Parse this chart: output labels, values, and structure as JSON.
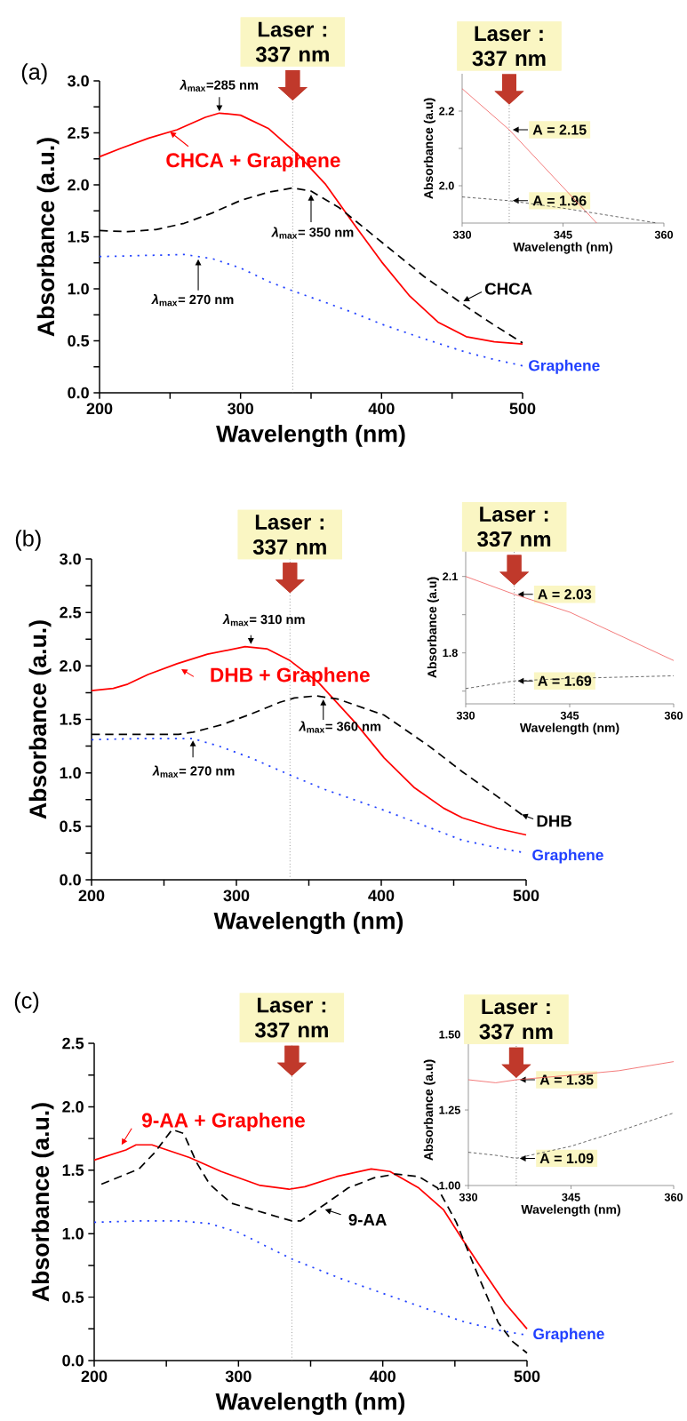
{
  "chart_data": [
    {
      "type": "line",
      "title": "(a)",
      "xlabel": "Wavelength (nm)",
      "ylabel": "Absorbance (a.u.)",
      "xlim": [
        200,
        500
      ],
      "ylim": [
        0,
        3
      ],
      "xticks": [
        200,
        {
          "value": 250,
          "label": null
        },
        300,
        {
          "value": 350,
          "label": null
        },
        400,
        {
          "value": 450,
          "label": null
        },
        500
      ],
      "yticks": [
        {
          "value": 0,
          "label": "0.0"
        },
        {
          "value": 0.25,
          "label": null
        },
        {
          "value": 0.5,
          "label": "0.5"
        },
        {
          "value": 0.75,
          "label": null
        },
        {
          "value": 1,
          "label": "1.0"
        },
        {
          "value": 1.25,
          "label": null
        },
        {
          "value": 1.5,
          "label": "1.5"
        },
        {
          "value": 1.75,
          "label": null
        },
        {
          "value": 2,
          "label": "2.0"
        },
        {
          "value": 2.25,
          "label": null
        },
        {
          "value": 2.5,
          "label": "2.5"
        },
        {
          "value": 2.75,
          "label": null
        },
        {
          "value": 3,
          "label": "3.0"
        }
      ],
      "series": [
        {
          "name": "CHCA + Graphene",
          "color": "#ff0000",
          "line_style": "solid",
          "x": [
            200,
            215,
            235,
            255,
            275,
            285,
            300,
            320,
            340,
            360,
            380,
            400,
            420,
            440,
            460,
            480,
            500
          ],
          "values": [
            2.27,
            2.35,
            2.45,
            2.53,
            2.65,
            2.69,
            2.67,
            2.54,
            2.3,
            2.01,
            1.63,
            1.26,
            0.93,
            0.68,
            0.54,
            0.49,
            0.47
          ]
        },
        {
          "name": "CHCA",
          "color": "#000000",
          "line_style": "dashed",
          "x": [
            200,
            220,
            240,
            260,
            280,
            300,
            320,
            337,
            350,
            370,
            400,
            430,
            460,
            480,
            500
          ],
          "values": [
            1.56,
            1.55,
            1.57,
            1.63,
            1.73,
            1.85,
            1.93,
            1.97,
            1.94,
            1.78,
            1.45,
            1.12,
            0.83,
            0.65,
            0.48
          ]
        },
        {
          "name": "Graphene",
          "color": "#2040ff",
          "line_style": "dotted",
          "x": [
            200,
            230,
            260,
            280,
            300,
            320,
            337,
            360,
            380,
            400,
            430,
            460,
            480,
            500
          ],
          "values": [
            1.31,
            1.32,
            1.33,
            1.29,
            1.2,
            1.07,
            0.98,
            0.87,
            0.77,
            0.66,
            0.52,
            0.39,
            0.32,
            0.26
          ]
        }
      ],
      "ref_lines": [
        {
          "axis": "x",
          "value": 337,
          "label": "Laser : 337 nm",
          "color": "#666666",
          "line_style": "dotted"
        }
      ],
      "annotations": [
        {
          "text": "*λ*$_{max}$=285 nm",
          "x": 285,
          "y": 2.69
        },
        {
          "text": "*λ*$_{max}$= 350 nm",
          "x": 350,
          "y": 1.94
        },
        {
          "text": "*λ*$_{max}$= 270 nm",
          "x": 270,
          "y": 1.31
        }
      ]
    },
    {
      "type": "line",
      "xlabel": "Wavelength (nm)",
      "ylabel": "Absorbance (a.u)",
      "xlim": [
        330,
        360
      ],
      "ylim": [
        1.9,
        2.3
      ],
      "xticks": [
        330,
        345,
        360
      ],
      "yticks": [
        {
          "value": 2,
          "label": "2.0"
        },
        {
          "value": 2.1,
          "label": null
        },
        {
          "value": 2.2,
          "label": "2.2"
        }
      ],
      "series": [
        {
          "color": "#f05a5a",
          "line_style": "solid",
          "x": [
            330,
            337,
            350
          ],
          "values": [
            2.26,
            2.15,
            1.9
          ]
        },
        {
          "color": "#444444",
          "line_style": "dashed",
          "x": [
            330,
            337,
            345,
            352,
            359
          ],
          "values": [
            1.97,
            1.96,
            1.94,
            1.92,
            1.9
          ]
        }
      ],
      "ref_lines": [
        {
          "axis": "x",
          "value": 337,
          "label": "Laser : 337 nm",
          "color": "#444444",
          "line_style": "dotted"
        }
      ],
      "annotations": [
        {
          "text": "A = 2.15",
          "x": 337,
          "y": 2.15
        },
        {
          "text": "A = 1.96",
          "x": 337,
          "y": 1.96
        }
      ]
    },
    {
      "type": "line",
      "title": "(b)",
      "xlabel": "Wavelength (nm)",
      "ylabel": "Absorbance (a.u.)",
      "xlim": [
        200,
        500
      ],
      "ylim": [
        0,
        3
      ],
      "xticks": [
        200,
        {
          "value": 250,
          "label": null
        },
        300,
        {
          "value": 350,
          "label": null
        },
        400,
        {
          "value": 450,
          "label": null
        },
        500
      ],
      "yticks": [
        {
          "value": 0,
          "label": "0.0"
        },
        {
          "value": 0.25,
          "label": null
        },
        {
          "value": 0.5,
          "label": "0.5"
        },
        {
          "value": 0.75,
          "label": null
        },
        {
          "value": 1,
          "label": "1.0"
        },
        {
          "value": 1.25,
          "label": null
        },
        {
          "value": 1.5,
          "label": "1.5"
        },
        {
          "value": 1.75,
          "label": null
        },
        {
          "value": 2,
          "label": "2.0"
        },
        {
          "value": 2.25,
          "label": null
        },
        {
          "value": 2.5,
          "label": "2.5"
        },
        {
          "value": 2.75,
          "label": null
        },
        {
          "value": 3,
          "label": "3.0"
        }
      ],
      "series": [
        {
          "name": "DHB + Graphene",
          "color": "#ff0000",
          "line_style": "solid",
          "x": [
            200,
            215,
            225,
            239,
            259,
            280,
            306,
            321,
            337,
            357,
            382,
            402,
            423,
            443,
            456,
            480,
            500
          ],
          "values": [
            1.77,
            1.79,
            1.83,
            1.92,
            2.02,
            2.11,
            2.18,
            2.16,
            2.05,
            1.84,
            1.47,
            1.14,
            0.86,
            0.67,
            0.58,
            0.48,
            0.42
          ]
        },
        {
          "name": "DHB",
          "color": "#000000",
          "line_style": "dashed",
          "x": [
            200,
            220,
            260,
            270,
            290,
            310,
            330,
            340,
            355,
            370,
            402,
            433,
            456,
            480,
            500
          ],
          "values": [
            1.36,
            1.36,
            1.36,
            1.38,
            1.45,
            1.55,
            1.66,
            1.7,
            1.72,
            1.69,
            1.54,
            1.25,
            1.01,
            0.78,
            0.58
          ]
        },
        {
          "name": "Graphene",
          "color": "#2040ff",
          "line_style": "dotted",
          "x": [
            200,
            230,
            270,
            288,
            310,
            337,
            360,
            402,
            456,
            480,
            500
          ],
          "values": [
            1.31,
            1.32,
            1.32,
            1.25,
            1.14,
            0.98,
            0.85,
            0.65,
            0.37,
            0.3,
            0.25
          ]
        }
      ],
      "ref_lines": [
        {
          "axis": "x",
          "value": 337,
          "label": "Laser : 337 nm",
          "color": "#666666",
          "line_style": "dotted"
        }
      ],
      "annotations": [
        {
          "text": "*λ*$_{max}$= 310 nm",
          "x": 310,
          "y": 2.18
        },
        {
          "text": "*λ*$_{max}$= 360 nm",
          "x": 360,
          "y": 1.72
        },
        {
          "text": "*λ*$_{max}$= 270 nm",
          "x": 270,
          "y": 1.32
        }
      ]
    },
    {
      "type": "line",
      "xlabel": "Wavelength (nm)",
      "ylabel": "Absorbance (a.u)",
      "xlim": [
        330,
        360
      ],
      "ylim": [
        1.6,
        2.2
      ],
      "xticks": [
        330,
        345,
        360
      ],
      "yticks": [
        {
          "value": 1.65,
          "label": null
        },
        1.8,
        {
          "value": 1.95,
          "label": null
        },
        2.1
      ],
      "series": [
        {
          "color": "#f05a5a",
          "line_style": "solid",
          "x": [
            330,
            337,
            345,
            360
          ],
          "values": [
            2.1,
            2.03,
            1.96,
            1.77
          ]
        },
        {
          "color": "#444444",
          "line_style": "dashed",
          "x": [
            330,
            337,
            345,
            360
          ],
          "values": [
            1.66,
            1.69,
            1.7,
            1.71
          ]
        }
      ],
      "ref_lines": [
        {
          "axis": "x",
          "value": 337,
          "label": "Laser : 337 nm",
          "color": "#444444",
          "line_style": "dotted"
        }
      ],
      "annotations": [
        {
          "text": "A = 2.03",
          "x": 337,
          "y": 2.03
        },
        {
          "text": "A = 1.69",
          "x": 337,
          "y": 1.69
        }
      ]
    },
    {
      "type": "line",
      "title": "(c)",
      "xlabel": "Wavelength (nm)",
      "ylabel": "Absorbance (a.u.)",
      "xlim": [
        200,
        500
      ],
      "ylim": [
        0,
        2.5
      ],
      "xticks": [
        200,
        {
          "value": 250,
          "label": null
        },
        300,
        {
          "value": 350,
          "label": null
        },
        400,
        {
          "value": 450,
          "label": null
        },
        500
      ],
      "yticks": [
        {
          "value": 0,
          "label": "0.0"
        },
        {
          "value": 0.25,
          "label": null
        },
        {
          "value": 0.5,
          "label": "0.5"
        },
        {
          "value": 0.75,
          "label": null
        },
        {
          "value": 1,
          "label": "1.0"
        },
        {
          "value": 1.25,
          "label": null
        },
        {
          "value": 1.5,
          "label": "1.5"
        },
        {
          "value": 1.75,
          "label": null
        },
        {
          "value": 2,
          "label": "2.0"
        },
        {
          "value": 2.25,
          "label": null
        },
        {
          "value": 2.5,
          "label": "2.5"
        }
      ],
      "series": [
        {
          "name": "9-AA + Graphene",
          "color": "#ff0000",
          "line_style": "solid",
          "x": [
            200,
            222,
            229,
            240,
            266,
            288,
            315,
            335,
            346,
            368,
            392,
            405,
            425,
            442,
            455,
            470,
            485,
            500
          ],
          "values": [
            1.58,
            1.66,
            1.7,
            1.7,
            1.6,
            1.49,
            1.38,
            1.35,
            1.37,
            1.45,
            1.51,
            1.49,
            1.36,
            1.19,
            0.96,
            0.7,
            0.45,
            0.25
          ]
        },
        {
          "name": "9-AA",
          "color": "#000000",
          "line_style": "dashed",
          "x": [
            205,
            231,
            242,
            254,
            262,
            271,
            280,
            295,
            310,
            337,
            343,
            361,
            376,
            394,
            409,
            425,
            438,
            451,
            465,
            480,
            490,
            500
          ],
          "values": [
            1.39,
            1.51,
            1.64,
            1.82,
            1.79,
            1.56,
            1.39,
            1.24,
            1.19,
            1.1,
            1.1,
            1.24,
            1.36,
            1.44,
            1.47,
            1.45,
            1.36,
            1.09,
            0.7,
            0.3,
            0.15,
            0.06
          ]
        },
        {
          "name": "Graphene",
          "color": "#2040ff",
          "line_style": "dotted",
          "x": [
            200,
            230,
            260,
            280,
            300,
            337,
            370,
            400,
            455,
            480,
            500
          ],
          "values": [
            1.09,
            1.1,
            1.1,
            1.08,
            1.01,
            0.8,
            0.65,
            0.53,
            0.31,
            0.24,
            0.2
          ]
        }
      ],
      "ref_lines": [
        {
          "axis": "x",
          "value": 337,
          "label": "Laser : 337 nm",
          "color": "#666666",
          "line_style": "dotted"
        }
      ]
    },
    {
      "type": "line",
      "xlabel": "Wavelength (nm)",
      "ylabel": "Absorbance (a.u)",
      "xlim": [
        330,
        360
      ],
      "ylim": [
        1.0,
        1.5
      ],
      "xticks": [
        330,
        345,
        360
      ],
      "yticks": [
        {
          "value": 1,
          "label": "1.00"
        },
        1.25,
        {
          "value": 1.5,
          "label": "1.50"
        }
      ],
      "series": [
        {
          "color": "#f05a5a",
          "line_style": "solid",
          "x": [
            330,
            334,
            337,
            345,
            352,
            360
          ],
          "values": [
            1.35,
            1.34,
            1.35,
            1.365,
            1.38,
            1.41
          ]
        },
        {
          "color": "#444444",
          "line_style": "dashed",
          "x": [
            330,
            334,
            337,
            345,
            352,
            360
          ],
          "values": [
            1.11,
            1.1,
            1.09,
            1.13,
            1.18,
            1.24
          ]
        }
      ],
      "ref_lines": [
        {
          "axis": "x",
          "value": 337,
          "label": "Laser : 337 nm",
          "color": "#444444",
          "line_style": "dotted"
        }
      ],
      "annotations": [
        {
          "text": "A = 1.35",
          "x": 337,
          "y": 1.35
        },
        {
          "text": "A = 1.09",
          "x": 337,
          "y": 1.09
        }
      ]
    }
  ]
}
